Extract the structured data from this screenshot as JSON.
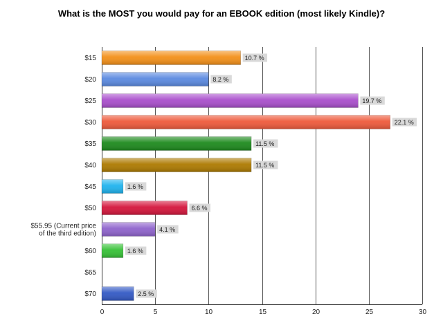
{
  "chart_data": {
    "type": "bar",
    "orientation": "horizontal",
    "title": "What is the MOST you would pay for an EBOOK edition (most likely Kindle)?",
    "xlabel": "",
    "ylabel": "",
    "xlim": [
      0,
      30
    ],
    "xticks": [
      0,
      5,
      10,
      15,
      20,
      25,
      30
    ],
    "grid": true,
    "legend": "none",
    "categories": [
      [
        "$15"
      ],
      [
        "$20"
      ],
      [
        "$25"
      ],
      [
        "$30"
      ],
      [
        "$35"
      ],
      [
        "$40"
      ],
      [
        "$45"
      ],
      [
        "$50"
      ],
      [
        "$55.95 (Current price",
        "of the third edition)"
      ],
      [
        "$60"
      ],
      [
        "$65"
      ],
      [
        "$70"
      ]
    ],
    "values": [
      13,
      10,
      24,
      27,
      14,
      14,
      2,
      8,
      5,
      2,
      0,
      3
    ],
    "data_labels": [
      "10.7 %",
      "8.2 %",
      "19.7 %",
      "22.1 %",
      "11.5 %",
      "11.5 %",
      "1.6 %",
      "6.6 %",
      "4.1 %",
      "1.6 %",
      "",
      "2.5 %"
    ],
    "colors": [
      "#f39019",
      "#5b8ae0",
      "#a94fcc",
      "#ee5a3b",
      "#1d8a1d",
      "#ad7a00",
      "#1fb3ee",
      "#d4163c",
      "#8e63cc",
      "#36c136",
      "#999999",
      "#3359c4"
    ]
  }
}
